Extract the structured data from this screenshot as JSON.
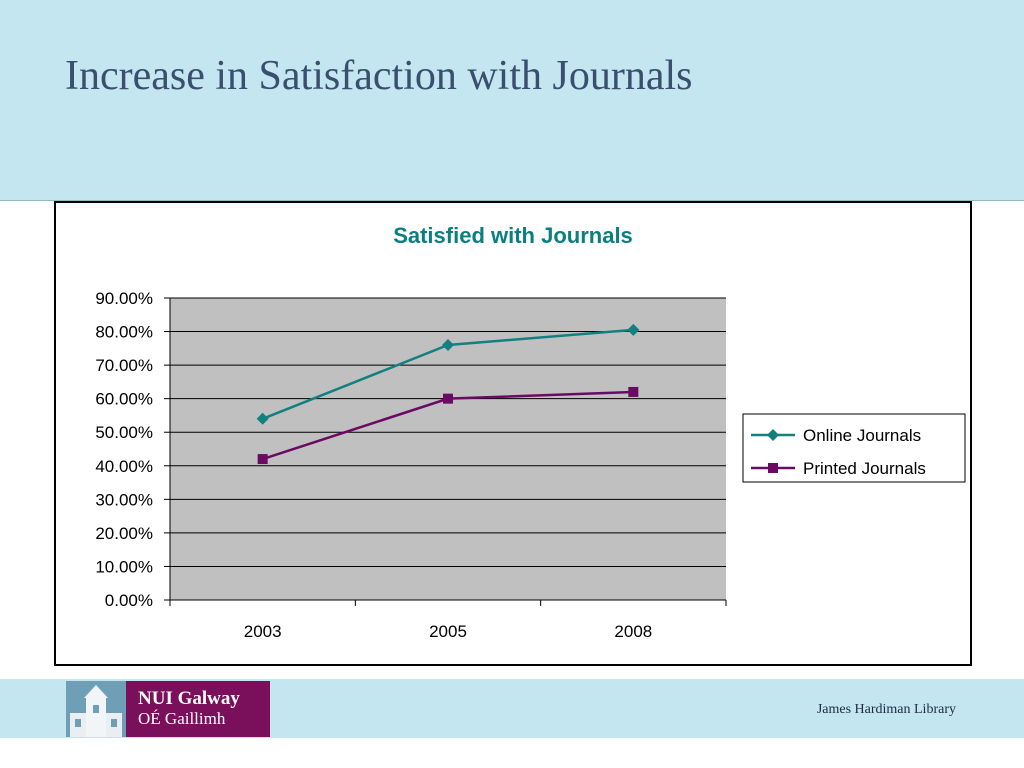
{
  "slide": {
    "title": "Increase in Satisfaction with Journals",
    "footer": "James Hardiman Library"
  },
  "logo": {
    "line1": "NUI Galway",
    "line2": "OÉ Gaillimh"
  },
  "colors": {
    "band": "#c3e6f1",
    "plot_area": "#c0c0c0",
    "title_teal": "#0a7f7f",
    "online": "#12807f",
    "printed": "#6b0a63",
    "logo_purple": "#7a0f5c"
  },
  "chart_data": {
    "type": "line",
    "title": "Satisfied with Journals",
    "xlabel": "",
    "ylabel": "",
    "categories": [
      "2003",
      "2005",
      "2008"
    ],
    "ylim": [
      0,
      90
    ],
    "yticks": [
      0,
      10,
      20,
      30,
      40,
      50,
      60,
      70,
      80,
      90
    ],
    "ytick_labels": [
      "0.00%",
      "10.00%",
      "20.00%",
      "30.00%",
      "40.00%",
      "50.00%",
      "60.00%",
      "70.00%",
      "80.00%",
      "90.00%"
    ],
    "grid": true,
    "legend_position": "right",
    "series": [
      {
        "name": "Online Journals",
        "values": [
          54,
          76,
          80.5
        ],
        "color": "#12807f",
        "marker": "diamond"
      },
      {
        "name": "Printed Journals",
        "values": [
          42,
          60,
          62
        ],
        "color": "#6b0a63",
        "marker": "square"
      }
    ]
  }
}
